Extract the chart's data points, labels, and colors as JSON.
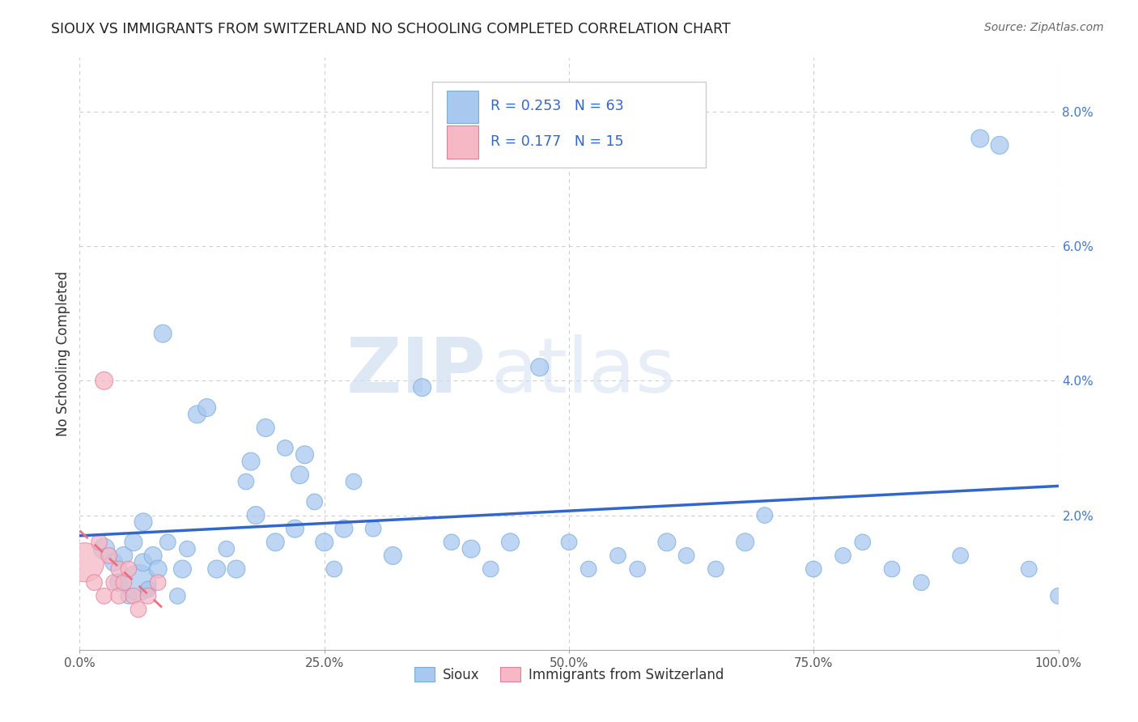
{
  "title": "SIOUX VS IMMIGRANTS FROM SWITZERLAND NO SCHOOLING COMPLETED CORRELATION CHART",
  "source": "Source: ZipAtlas.com",
  "ylabel": "No Schooling Completed",
  "legend_bottom": [
    "Sioux",
    "Immigrants from Switzerland"
  ],
  "r_sioux": 0.253,
  "n_sioux": 63,
  "r_swiss": 0.177,
  "n_swiss": 15,
  "xlim": [
    0.0,
    1.0
  ],
  "ylim": [
    0.0,
    0.088
  ],
  "yticks": [
    0.0,
    0.02,
    0.04,
    0.06,
    0.08
  ],
  "ytick_labels": [
    "",
    "2.0%",
    "4.0%",
    "6.0%",
    "8.0%"
  ],
  "xticks": [
    0.0,
    0.25,
    0.5,
    0.75,
    1.0
  ],
  "xtick_labels": [
    "0.0%",
    "25.0%",
    "50.0%",
    "75.0%",
    "100.0%"
  ],
  "color_sioux": "#a8c8f0",
  "color_sioux_edge": "#7aaed8",
  "color_swiss": "#f5b8c4",
  "color_swiss_edge": "#e080a0",
  "color_line_sioux": "#3366cc",
  "color_line_swiss": "#e87080",
  "background_color": "#ffffff",
  "grid_color": "#cccccc",
  "sioux_x": [
    0.025,
    0.035,
    0.04,
    0.045,
    0.05,
    0.055,
    0.06,
    0.065,
    0.065,
    0.07,
    0.075,
    0.08,
    0.085,
    0.09,
    0.1,
    0.105,
    0.11,
    0.12,
    0.13,
    0.14,
    0.15,
    0.16,
    0.17,
    0.175,
    0.18,
    0.19,
    0.2,
    0.21,
    0.22,
    0.225,
    0.23,
    0.24,
    0.25,
    0.26,
    0.27,
    0.28,
    0.3,
    0.32,
    0.35,
    0.38,
    0.4,
    0.42,
    0.44,
    0.47,
    0.5,
    0.52,
    0.55,
    0.57,
    0.6,
    0.62,
    0.65,
    0.68,
    0.7,
    0.75,
    0.78,
    0.8,
    0.83,
    0.86,
    0.9,
    0.92,
    0.94,
    0.97,
    1.0
  ],
  "sioux_y": [
    0.015,
    0.013,
    0.01,
    0.014,
    0.008,
    0.016,
    0.01,
    0.013,
    0.019,
    0.009,
    0.014,
    0.012,
    0.047,
    0.016,
    0.008,
    0.012,
    0.015,
    0.035,
    0.036,
    0.012,
    0.015,
    0.012,
    0.025,
    0.028,
    0.02,
    0.033,
    0.016,
    0.03,
    0.018,
    0.026,
    0.029,
    0.022,
    0.016,
    0.012,
    0.018,
    0.025,
    0.018,
    0.014,
    0.039,
    0.016,
    0.015,
    0.012,
    0.016,
    0.042,
    0.016,
    0.012,
    0.014,
    0.012,
    0.016,
    0.014,
    0.012,
    0.016,
    0.02,
    0.012,
    0.014,
    0.016,
    0.012,
    0.01,
    0.014,
    0.076,
    0.075,
    0.012,
    0.008
  ],
  "sioux_size": [
    35,
    25,
    25,
    25,
    20,
    25,
    100,
    25,
    25,
    20,
    25,
    25,
    25,
    20,
    20,
    25,
    20,
    25,
    25,
    25,
    20,
    25,
    20,
    25,
    25,
    25,
    25,
    20,
    25,
    25,
    25,
    20,
    25,
    20,
    25,
    20,
    20,
    25,
    25,
    20,
    25,
    20,
    25,
    25,
    20,
    20,
    20,
    20,
    25,
    20,
    20,
    25,
    20,
    20,
    20,
    20,
    20,
    20,
    20,
    25,
    25,
    20,
    20
  ],
  "swiss_x": [
    0.005,
    0.015,
    0.02,
    0.025,
    0.025,
    0.03,
    0.035,
    0.04,
    0.04,
    0.045,
    0.05,
    0.055,
    0.06,
    0.07,
    0.08
  ],
  "swiss_y": [
    0.013,
    0.01,
    0.016,
    0.008,
    0.04,
    0.014,
    0.01,
    0.012,
    0.008,
    0.01,
    0.012,
    0.008,
    0.006,
    0.008,
    0.01
  ],
  "swiss_size": [
    120,
    20,
    20,
    20,
    25,
    20,
    20,
    20,
    20,
    20,
    20,
    20,
    20,
    20,
    20
  ]
}
